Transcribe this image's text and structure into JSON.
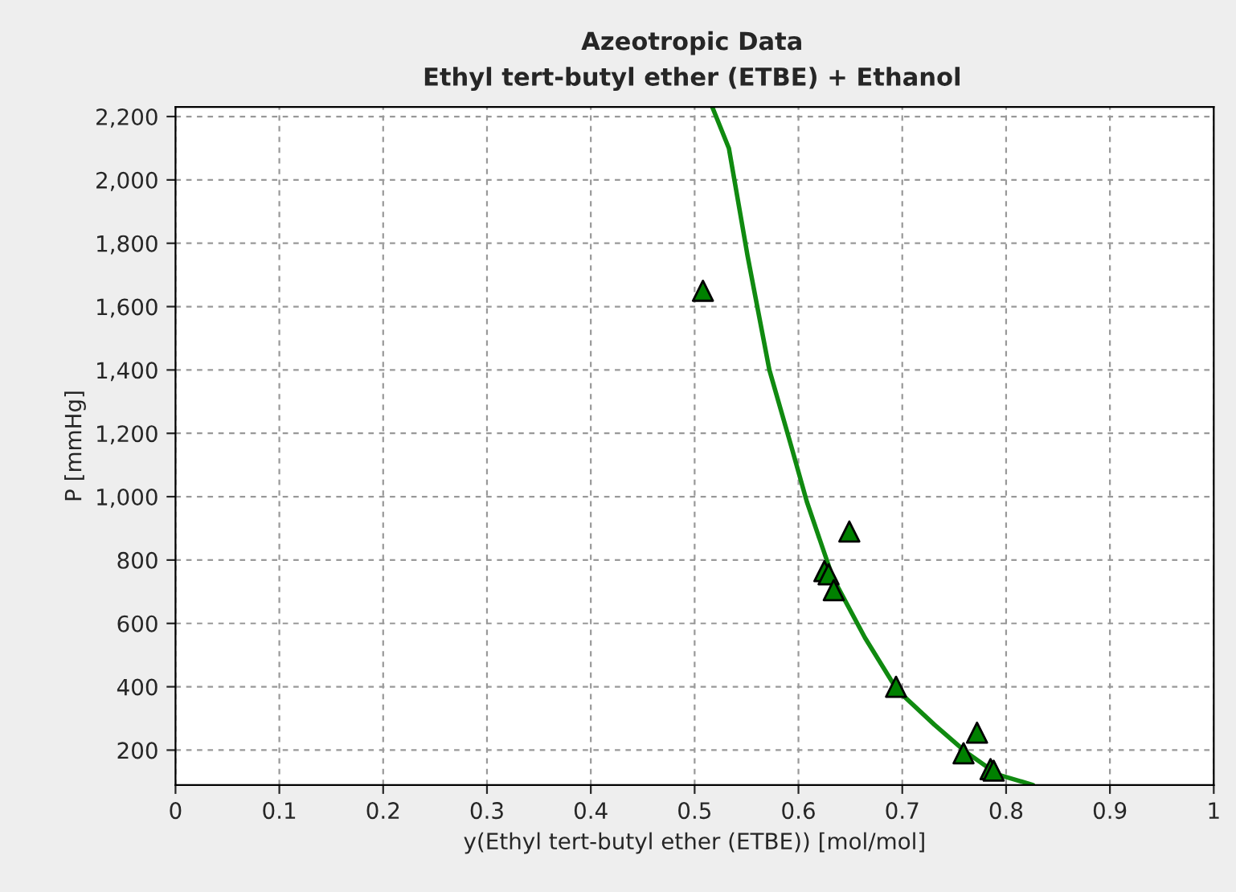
{
  "chart_data": {
    "type": "scatter",
    "title": "Azeotropic Data",
    "subtitle": "Ethyl tert-butyl ether (ETBE) + Ethanol",
    "xlabel": "y(Ethyl tert-butyl ether (ETBE)) [mol/mol]",
    "ylabel": "P [mmHg]",
    "xlim": [
      0,
      1
    ],
    "xticks": [
      0,
      0.1,
      0.2,
      0.3,
      0.4,
      0.5,
      0.6,
      0.7,
      0.8,
      0.9,
      1
    ],
    "ylim": [
      90,
      2230
    ],
    "yticks": [
      {
        "value": 200,
        "label": "200"
      },
      {
        "value": 400,
        "label": "400"
      },
      {
        "value": 600,
        "label": "600"
      },
      {
        "value": 800,
        "label": "800"
      },
      {
        "value": 1000,
        "label": "1,000"
      },
      {
        "value": 1200,
        "label": "1,200"
      },
      {
        "value": 1400,
        "label": "1,400"
      },
      {
        "value": 1600,
        "label": "1,600"
      },
      {
        "value": 1800,
        "label": "1,800"
      },
      {
        "value": 2000,
        "label": "2,000"
      },
      {
        "value": 2200,
        "label": "2,200"
      }
    ],
    "grid": true,
    "legend": false,
    "series": [
      {
        "type": "line",
        "color": "#108a10",
        "marker": "none",
        "line_style": "solid",
        "x": [
          0.517,
          0.533,
          0.551,
          0.572,
          0.593,
          0.608,
          0.633,
          0.664,
          0.695,
          0.731,
          0.762,
          0.792,
          0.826
        ],
        "values": [
          2230,
          2100,
          1760,
          1400,
          1160,
          985,
          745,
          555,
          390,
          280,
          192,
          123,
          90
        ]
      },
      {
        "color": "#008000",
        "marker": "triangle",
        "x": [
          0.508,
          0.649,
          0.625,
          0.629,
          0.634,
          0.694,
          0.772,
          0.759,
          0.785,
          0.788
        ],
        "values": [
          1650,
          890,
          765,
          755,
          705,
          400,
          255,
          190,
          140,
          135
        ]
      }
    ]
  }
}
